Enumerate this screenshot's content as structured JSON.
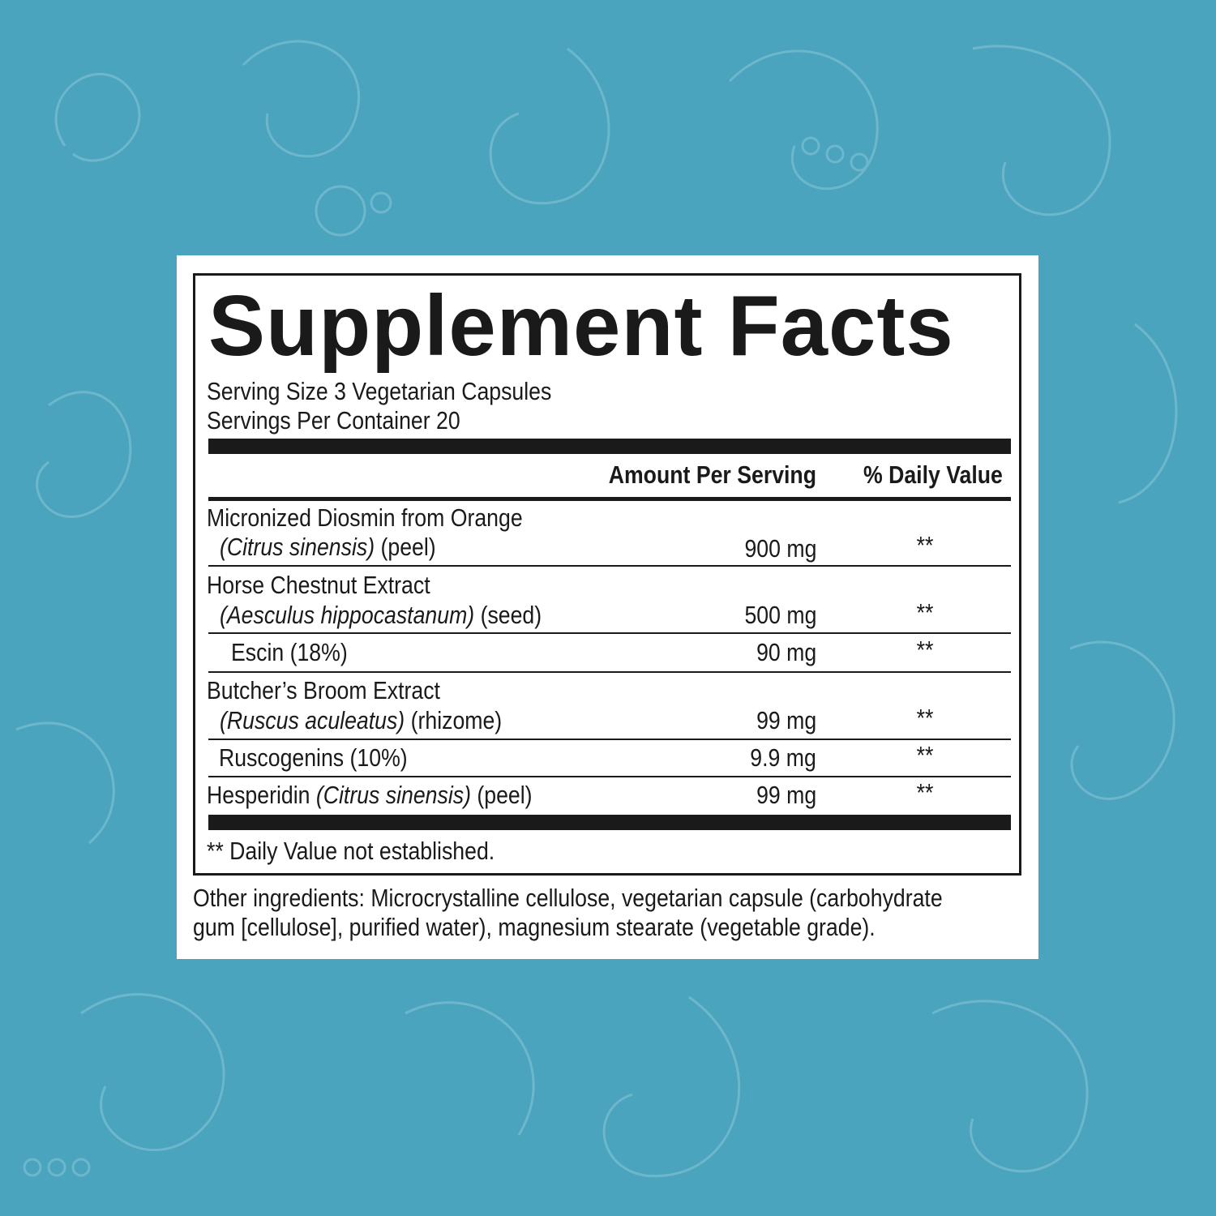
{
  "background_color": "#4ba4bd",
  "label": {
    "title": "Supplement Facts",
    "serving_size": "Serving Size 3 Vegetarian Capsules",
    "servings_per_container": "Servings Per Container 20",
    "headers": {
      "amount": "Amount Per Serving",
      "daily_value": "% Daily Value"
    },
    "rows": [
      {
        "name": "Micronized Diosmin from Orange",
        "latin": "(Citrus sinensis)",
        "part": "(peel)",
        "amount": "900 mg",
        "dv": "**"
      },
      {
        "name": "Horse Chestnut Extract",
        "latin": "(Aesculus hippocastanum)",
        "part": "(seed)",
        "amount": "500 mg",
        "dv": "**"
      },
      {
        "name": "Escin (18%)",
        "amount": "90 mg",
        "dv": "**"
      },
      {
        "name": "Butcher’s Broom Extract",
        "latin": "(Ruscus aculeatus)",
        "part": "(rhizome)",
        "amount": "99 mg",
        "dv": "**"
      },
      {
        "name": "Ruscogenins (10%)",
        "amount": "9.9 mg",
        "dv": "**"
      },
      {
        "name": "Hesperidin",
        "latin": "(Citrus sinensis)",
        "part": "(peel)",
        "amount": "99 mg",
        "dv": "**"
      }
    ],
    "footnote": "** Daily Value not established."
  },
  "other_ingredients": {
    "line1": "Other ingredients: Microcrystalline cellulose, vegetarian capsule (carbohydrate",
    "line2": "gum [cellulose], purified water), magnesium stearate (vegetable grade)."
  }
}
